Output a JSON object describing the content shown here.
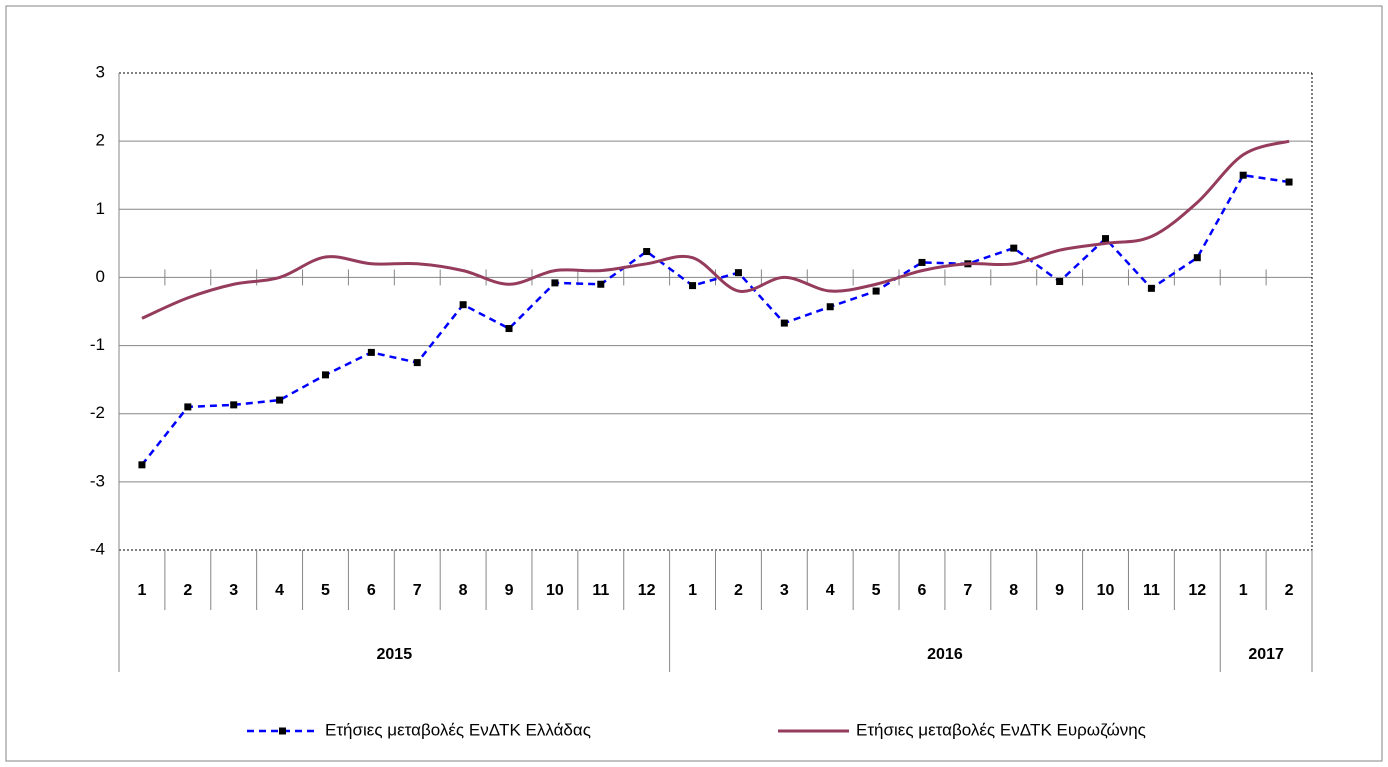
{
  "chart_data": {
    "type": "line",
    "categories": [
      "1",
      "2",
      "3",
      "4",
      "5",
      "6",
      "7",
      "8",
      "9",
      "10",
      "11",
      "12",
      "1",
      "2",
      "3",
      "4",
      "5",
      "6",
      "7",
      "8",
      "9",
      "10",
      "11",
      "12",
      "1",
      "2"
    ],
    "category_groups": [
      "2015",
      "2016",
      "2017"
    ],
    "series": [
      {
        "name": "Ετήσιες μεταβολές ΕνΔΤΚ Ελλάδας",
        "color": "#0000ff",
        "dashed": true,
        "marker": "square",
        "marker_color": "#000000",
        "values": [
          -2.75,
          -1.9,
          -1.87,
          -1.8,
          -1.43,
          -1.1,
          -1.25,
          -0.4,
          -0.75,
          -0.08,
          -0.1,
          0.38,
          -0.12,
          0.07,
          -0.67,
          -0.43,
          -0.2,
          0.22,
          0.2,
          0.43,
          -0.06,
          0.57,
          -0.16,
          0.29,
          1.5,
          1.4
        ]
      },
      {
        "name": "Ετήσιες μεταβολές ΕνΔΤΚ Ευρωζώνης",
        "color": "#953b5c",
        "smooth": true,
        "values": [
          -0.6,
          -0.3,
          -0.1,
          0.0,
          0.3,
          0.2,
          0.2,
          0.1,
          -0.1,
          0.1,
          0.1,
          0.2,
          0.29,
          -0.2,
          0.0,
          -0.2,
          -0.1,
          0.1,
          0.2,
          0.2,
          0.4,
          0.5,
          0.6,
          1.1,
          1.8,
          2.0
        ]
      }
    ],
    "ylim": [
      -4,
      3
    ],
    "yticks": [
      3,
      2,
      1,
      0,
      -1,
      -2,
      -3,
      -4
    ],
    "grid": true,
    "legend": "bottom"
  }
}
